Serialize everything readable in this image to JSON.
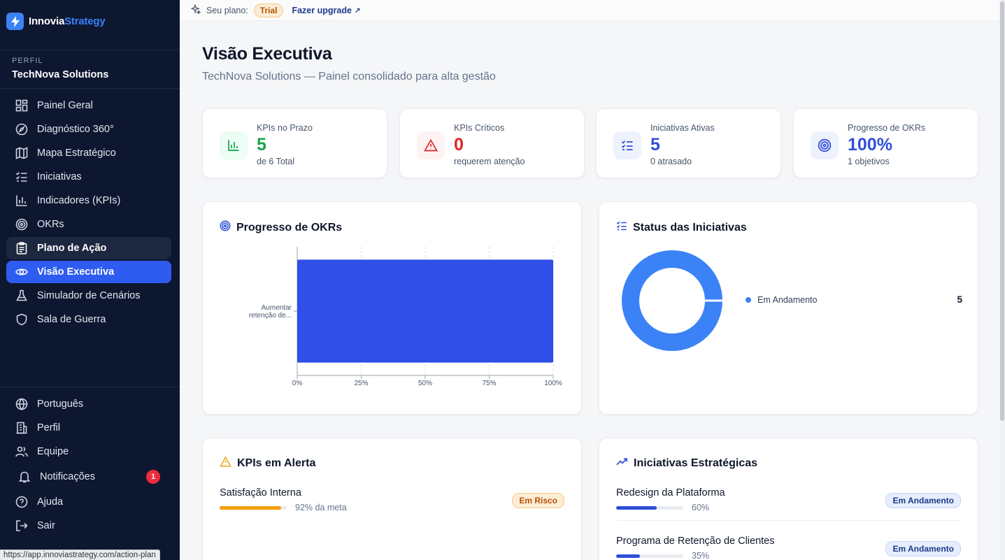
{
  "brand": {
    "name_part1": "Innovia",
    "name_part2": "Strategy"
  },
  "profile": {
    "label": "PERFIL",
    "name": "TechNova Solutions"
  },
  "nav": [
    {
      "label": "Painel Geral",
      "icon": "dashboard-icon"
    },
    {
      "label": "Diagnóstico 360°",
      "icon": "compass-icon"
    },
    {
      "label": "Mapa Estratégico",
      "icon": "map-icon"
    },
    {
      "label": "Iniciativas",
      "icon": "checklist-icon"
    },
    {
      "label": "Indicadores (KPIs)",
      "icon": "bar-chart-icon"
    },
    {
      "label": "OKRs",
      "icon": "target-icon"
    },
    {
      "label": "Plano de Ação",
      "icon": "clipboard-icon"
    },
    {
      "label": "Visão Executiva",
      "icon": "eye-icon"
    },
    {
      "label": "Simulador de Cenários",
      "icon": "flask-icon"
    },
    {
      "label": "Sala de Guerra",
      "icon": "shield-icon"
    }
  ],
  "bottom_nav": [
    {
      "label": "Português",
      "icon": "globe-icon"
    },
    {
      "label": "Perfil",
      "icon": "building-icon"
    },
    {
      "label": "Equipe",
      "icon": "users-icon"
    },
    {
      "label": "Notificações",
      "icon": "bell-icon",
      "badge": "1"
    },
    {
      "label": "Ajuda",
      "icon": "help-icon"
    },
    {
      "label": "Sair",
      "icon": "logout-icon"
    }
  ],
  "status_url": "https://app.innoviastrategy.com/action-plan",
  "topbar": {
    "plan_label": "Seu plano:",
    "plan_badge": "Trial",
    "upgrade_label": "Fazer upgrade",
    "upgrade_arrow": "↗"
  },
  "page": {
    "title": "Visão Executiva",
    "subtitle": "TechNova Solutions — Painel consolidado para alta gestão"
  },
  "kpis": [
    {
      "label": "KPIs no Prazo",
      "value": "5",
      "sub": "de 6 Total",
      "color": "#16a34a",
      "icon": "bar-chart-icon"
    },
    {
      "label": "KPIs Críticos",
      "value": "0",
      "sub": "requerem atenção",
      "color": "#dc2626",
      "icon": "alert-icon"
    },
    {
      "label": "Iniciativas Ativas",
      "value": "5",
      "sub": "0 atrasado",
      "color": "#2f4fd8",
      "icon": "checklist-icon"
    },
    {
      "label": "Progresso de OKRs",
      "value": "100%",
      "sub": "1 objetivos",
      "color": "#2f4fd8",
      "icon": "target-icon"
    }
  ],
  "okr_panel": {
    "title": "Progresso de OKRs"
  },
  "status_panel": {
    "title": "Status das Iniciativas"
  },
  "alert_panel": {
    "title": "KPIs em Alerta",
    "items": [
      {
        "name": "Satisfação Interna",
        "progress": 92,
        "progress_text": "92% da meta",
        "status": "Em Risco"
      }
    ]
  },
  "initiatives_panel": {
    "title": "Iniciativas Estratégicas",
    "items": [
      {
        "name": "Redesign da Plataforma",
        "progress": 60,
        "progress_text": "60%",
        "status": "Em Andamento"
      },
      {
        "name": "Programa de Retenção de Clientes",
        "progress": 35,
        "progress_text": "35%",
        "status": "Em Andamento"
      }
    ]
  },
  "chart_data": [
    {
      "type": "bar",
      "orientation": "horizontal",
      "categories": [
        "Aumentar retenção de..."
      ],
      "values": [
        100
      ],
      "xlim": [
        0,
        100
      ],
      "xticks": [
        "0%",
        "25%",
        "50%",
        "75%",
        "100%"
      ],
      "grid": true,
      "color": "#2f4fe8"
    },
    {
      "type": "pie",
      "donut": true,
      "labels": [
        "Em Andamento"
      ],
      "values": [
        5
      ],
      "colors": [
        "#3b82f6"
      ],
      "legend": "right"
    }
  ]
}
